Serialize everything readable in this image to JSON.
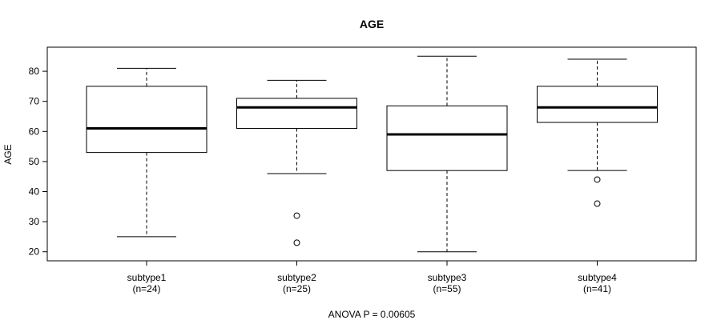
{
  "chart_data": {
    "type": "box",
    "title": "AGE",
    "xlabel": "",
    "ylabel": "AGE",
    "ylim": [
      17,
      88
    ],
    "yticks": [
      20,
      30,
      40,
      50,
      60,
      70,
      80
    ],
    "footnote": "ANOVA P = 0.00605",
    "categories": [
      {
        "name": "subtype1",
        "count_label": "(n=24)",
        "whisker_low": 25,
        "q1": 53,
        "median": 61,
        "q3": 75,
        "whisker_high": 81,
        "outliers": []
      },
      {
        "name": "subtype2",
        "count_label": "(n=25)",
        "whisker_low": 46,
        "q1": 61,
        "median": 68,
        "q3": 71,
        "whisker_high": 77,
        "outliers": [
          32,
          23
        ]
      },
      {
        "name": "subtype3",
        "count_label": "(n=55)",
        "whisker_low": 20,
        "q1": 47,
        "median": 59,
        "q3": 68.5,
        "whisker_high": 85,
        "outliers": []
      },
      {
        "name": "subtype4",
        "count_label": "(n=41)",
        "whisker_low": 47,
        "q1": 63,
        "median": 68,
        "q3": 75,
        "whisker_high": 84,
        "outliers": [
          44,
          36
        ]
      }
    ]
  }
}
